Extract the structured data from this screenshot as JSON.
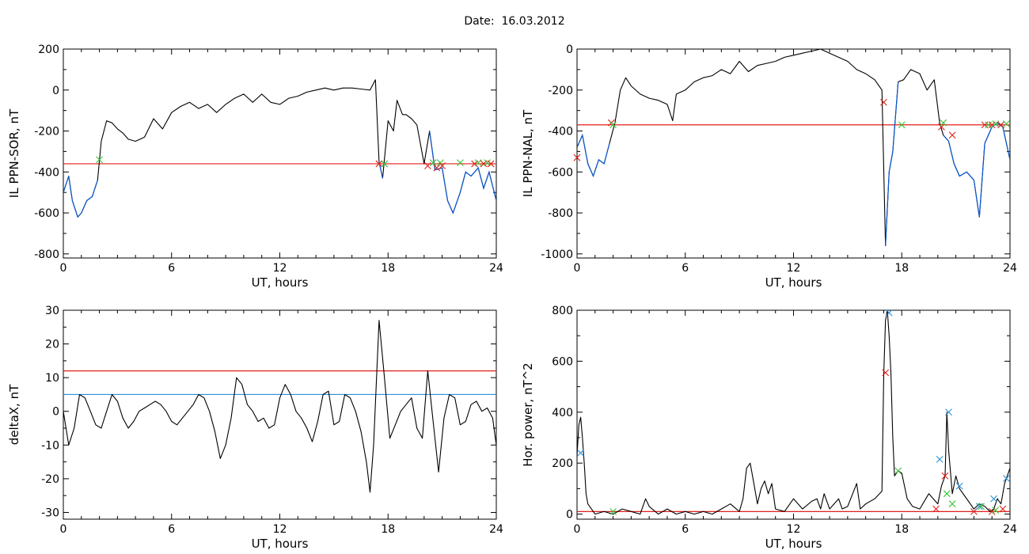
{
  "title": "Date:  16.03.2012",
  "colors": {
    "trace": "#000000",
    "blue_trace": "#0a5ad2",
    "red": "#e0201a",
    "blue": "#2b8fd6",
    "green": "#36c436"
  },
  "chart_data": [
    {
      "type": "line",
      "panel": "top-left",
      "xlabel": "UT, hours",
      "ylabel": "IL PPN-SOR, nT",
      "xlim": [
        0,
        24
      ],
      "ylim": [
        -820,
        200
      ],
      "xticks": [
        0,
        6,
        12,
        18,
        24
      ],
      "yticks": [
        -800,
        -600,
        -400,
        -200,
        0,
        200
      ],
      "grid": false,
      "threshold_lines": [
        {
          "color": "red",
          "y": -360
        }
      ],
      "series": [
        {
          "color": "black",
          "x": [
            0,
            0.3,
            0.5,
            0.8,
            1,
            1.3,
            1.6,
            1.9,
            2.1,
            2.4,
            2.7,
            3,
            3.3,
            3.6,
            4,
            4.5,
            5,
            5.5,
            6,
            6.5,
            7,
            7.5,
            8,
            8.5,
            9,
            9.5,
            10,
            10.5,
            11,
            11.5,
            12,
            12.5,
            13,
            13.5,
            14,
            14.5,
            15,
            15.5,
            16,
            16.5,
            17,
            17.3,
            17.5,
            17.7,
            18,
            18.3,
            18.5,
            18.8,
            19,
            19.3,
            19.6,
            20,
            20.3,
            20.6,
            21,
            21.3,
            21.6,
            22,
            22.3,
            22.6,
            23,
            23.3,
            23.6,
            24
          ],
          "y": [
            -500,
            -420,
            -540,
            -620,
            -600,
            -540,
            -520,
            -440,
            -250,
            -150,
            -160,
            -190,
            -210,
            -240,
            -250,
            -230,
            -140,
            -190,
            -110,
            -80,
            -60,
            -90,
            -70,
            -110,
            -70,
            -40,
            -20,
            -60,
            -20,
            -60,
            -70,
            -40,
            -30,
            -10,
            0,
            10,
            0,
            10,
            10,
            5,
            0,
            50,
            -350,
            -430,
            -150,
            -200,
            -50,
            -120,
            -120,
            -140,
            -170,
            -360,
            -200,
            -390,
            -380,
            -540,
            -600,
            -500,
            -400,
            -420,
            -380,
            -480,
            -400,
            -540
          ]
        }
      ],
      "blue_segments": [
        [
          0,
          2.0
        ],
        [
          17.4,
          17.8
        ],
        [
          20.1,
          24
        ]
      ],
      "markers": [
        {
          "x": 2.0,
          "y": -340,
          "color": "green"
        },
        {
          "x": 17.5,
          "y": -360,
          "color": "red"
        },
        {
          "x": 17.8,
          "y": -360,
          "color": "green"
        },
        {
          "x": 20.2,
          "y": -370,
          "color": "red"
        },
        {
          "x": 20.5,
          "y": -355,
          "color": "green"
        },
        {
          "x": 20.7,
          "y": -380,
          "color": "red"
        },
        {
          "x": 20.9,
          "y": -355,
          "color": "green"
        },
        {
          "x": 21.0,
          "y": -370,
          "color": "red"
        },
        {
          "x": 22.0,
          "y": -355,
          "color": "green"
        },
        {
          "x": 22.8,
          "y": -360,
          "color": "red"
        },
        {
          "x": 23.0,
          "y": -355,
          "color": "green"
        },
        {
          "x": 23.3,
          "y": -360,
          "color": "red"
        },
        {
          "x": 23.5,
          "y": -355,
          "color": "green"
        },
        {
          "x": 23.7,
          "y": -360,
          "color": "red"
        }
      ]
    },
    {
      "type": "line",
      "panel": "top-right",
      "xlabel": "UT, hours",
      "ylabel": "IL PPN-NAL, nT",
      "xlim": [
        0,
        24
      ],
      "ylim": [
        -1020,
        0
      ],
      "xticks": [
        0,
        6,
        12,
        18,
        24
      ],
      "yticks": [
        -1000,
        -800,
        -600,
        -400,
        -200,
        0
      ],
      "grid": false,
      "threshold_lines": [
        {
          "color": "red",
          "y": -370
        }
      ],
      "series": [
        {
          "color": "black",
          "x": [
            0,
            0.3,
            0.6,
            0.9,
            1.2,
            1.5,
            1.8,
            2.1,
            2.4,
            2.7,
            3,
            3.5,
            4,
            4.5,
            5,
            5.3,
            5.5,
            6,
            6.5,
            7,
            7.5,
            8,
            8.5,
            9,
            9.5,
            10,
            10.5,
            11,
            11.5,
            12,
            12.5,
            13,
            13.5,
            14,
            14.5,
            15,
            15.5,
            16,
            16.5,
            16.9,
            17.1,
            17.3,
            17.5,
            17.8,
            18.1,
            18.5,
            19,
            19.4,
            19.8,
            20.1,
            20.3,
            20.6,
            20.9,
            21.2,
            21.6,
            22,
            22.3,
            22.6,
            23,
            23.3,
            23.6,
            24
          ],
          "y": [
            -480,
            -420,
            -560,
            -620,
            -540,
            -560,
            -460,
            -360,
            -200,
            -140,
            -180,
            -220,
            -240,
            -250,
            -270,
            -350,
            -220,
            -200,
            -160,
            -140,
            -130,
            -100,
            -120,
            -60,
            -110,
            -80,
            -70,
            -60,
            -40,
            -30,
            -20,
            -10,
            0,
            -20,
            -40,
            -60,
            -100,
            -120,
            -150,
            -200,
            -960,
            -600,
            -500,
            -160,
            -150,
            -100,
            -120,
            -200,
            -150,
            -360,
            -420,
            -450,
            -560,
            -620,
            -600,
            -640,
            -820,
            -460,
            -380,
            -360,
            -380,
            -540
          ]
        }
      ],
      "blue_segments": [
        [
          0,
          2.0
        ],
        [
          17.0,
          17.8
        ],
        [
          20.2,
          24
        ]
      ],
      "markers": [
        {
          "x": 0.0,
          "y": -530,
          "color": "red"
        },
        {
          "x": 1.9,
          "y": -360,
          "color": "red"
        },
        {
          "x": 2.0,
          "y": -370,
          "color": "green"
        },
        {
          "x": 17.0,
          "y": -260,
          "color": "red"
        },
        {
          "x": 18.0,
          "y": -370,
          "color": "green"
        },
        {
          "x": 20.2,
          "y": -380,
          "color": "red"
        },
        {
          "x": 20.3,
          "y": -360,
          "color": "green"
        },
        {
          "x": 20.8,
          "y": -420,
          "color": "red"
        },
        {
          "x": 22.6,
          "y": -370,
          "color": "red"
        },
        {
          "x": 22.8,
          "y": -370,
          "color": "green"
        },
        {
          "x": 23.0,
          "y": -370,
          "color": "red"
        },
        {
          "x": 23.2,
          "y": -365,
          "color": "green"
        },
        {
          "x": 23.5,
          "y": -370,
          "color": "red"
        },
        {
          "x": 23.8,
          "y": -365,
          "color": "green"
        }
      ]
    },
    {
      "type": "line",
      "panel": "bottom-left",
      "xlabel": "UT, hours",
      "ylabel": "deltaX, nT",
      "xlim": [
        0,
        24
      ],
      "ylim": [
        -32,
        30
      ],
      "xticks": [
        0,
        6,
        12,
        18,
        24
      ],
      "yticks": [
        -30,
        -20,
        -10,
        0,
        10,
        20,
        30
      ],
      "grid": false,
      "threshold_lines": [
        {
          "color": "red",
          "y": 12
        },
        {
          "color": "blue",
          "y": 5
        }
      ],
      "series": [
        {
          "color": "black",
          "x": [
            0,
            0.3,
            0.6,
            0.9,
            1.2,
            1.5,
            1.8,
            2.1,
            2.4,
            2.7,
            3,
            3.3,
            3.6,
            3.9,
            4.2,
            4.5,
            4.8,
            5.1,
            5.4,
            5.7,
            6,
            6.3,
            6.6,
            6.9,
            7.2,
            7.5,
            7.8,
            8.1,
            8.4,
            8.7,
            9,
            9.3,
            9.6,
            9.9,
            10.2,
            10.5,
            10.8,
            11.1,
            11.4,
            11.7,
            12,
            12.3,
            12.6,
            12.9,
            13.2,
            13.5,
            13.8,
            14.1,
            14.4,
            14.7,
            15,
            15.3,
            15.6,
            15.9,
            16.2,
            16.5,
            16.8,
            17,
            17.2,
            17.5,
            17.8,
            18.1,
            18.4,
            18.7,
            19,
            19.3,
            19.6,
            19.9,
            20.2,
            20.5,
            20.8,
            21.1,
            21.4,
            21.7,
            22,
            22.3,
            22.6,
            22.9,
            23.2,
            23.5,
            23.8,
            24
          ],
          "y": [
            0,
            -10,
            -5,
            5,
            4,
            0,
            -4,
            -5,
            0,
            5,
            3,
            -2,
            -5,
            -3,
            0,
            1,
            2,
            3,
            2,
            0,
            -3,
            -4,
            -2,
            0,
            2,
            5,
            4,
            0,
            -6,
            -14,
            -10,
            -2,
            10,
            8,
            2,
            0,
            -3,
            -2,
            -5,
            -4,
            4,
            8,
            5,
            0,
            -2,
            -5,
            -9,
            -3,
            5,
            6,
            -4,
            -3,
            5,
            4,
            0,
            -6,
            -15,
            -24,
            -10,
            27,
            10,
            -8,
            -4,
            0,
            2,
            4,
            -5,
            -8,
            12,
            -3,
            -18,
            -2,
            5,
            4,
            -4,
            -3,
            2,
            3,
            0,
            1,
            -2,
            -10
          ]
        }
      ]
    },
    {
      "type": "line",
      "panel": "bottom-right",
      "xlabel": "UT, hours",
      "ylabel": "Hor. power, nT^2",
      "xlim": [
        0,
        24
      ],
      "ylim": [
        -20,
        800
      ],
      "xticks": [
        0,
        6,
        12,
        18,
        24
      ],
      "yticks": [
        0,
        200,
        400,
        600,
        800
      ],
      "grid": false,
      "threshold_lines": [
        {
          "color": "red",
          "y": 10
        }
      ],
      "series": [
        {
          "color": "black",
          "x": [
            0,
            0.1,
            0.2,
            0.3,
            0.4,
            0.5,
            0.6,
            0.8,
            1,
            1.5,
            2,
            2.5,
            3,
            3.5,
            3.8,
            4,
            4.5,
            5,
            5.5,
            6,
            6.5,
            7,
            7.5,
            8,
            8.5,
            9,
            9.2,
            9.4,
            9.6,
            9.8,
            10,
            10.2,
            10.4,
            10.6,
            10.8,
            11,
            11.5,
            12,
            12.5,
            13,
            13.3,
            13.5,
            13.7,
            14,
            14.5,
            14.7,
            15,
            15.5,
            15.7,
            16,
            16.5,
            16.9,
            17.0,
            17.1,
            17.2,
            17.3,
            17.4,
            17.5,
            17.6,
            17.8,
            18,
            18.3,
            18.6,
            19,
            19.5,
            20,
            20.2,
            20.4,
            20.5,
            20.6,
            20.8,
            21,
            21.2,
            21.5,
            22,
            22.3,
            22.6,
            22.9,
            23.1,
            23.3,
            23.5,
            23.7,
            24
          ],
          "y": [
            230,
            350,
            380,
            300,
            200,
            80,
            40,
            20,
            0,
            10,
            0,
            20,
            10,
            0,
            60,
            30,
            0,
            20,
            0,
            10,
            0,
            10,
            0,
            20,
            40,
            10,
            60,
            180,
            200,
            120,
            40,
            100,
            130,
            80,
            120,
            20,
            10,
            60,
            20,
            50,
            60,
            20,
            80,
            20,
            60,
            20,
            30,
            120,
            20,
            40,
            60,
            90,
            550,
            760,
            800,
            700,
            550,
            300,
            150,
            170,
            160,
            60,
            30,
            20,
            80,
            40,
            110,
            150,
            400,
            250,
            80,
            150,
            100,
            70,
            20,
            40,
            30,
            10,
            20,
            60,
            40,
            120,
            180
          ]
        }
      ],
      "markers": [
        {
          "x": 0.2,
          "y": 240,
          "color": "blue"
        },
        {
          "x": 2.0,
          "y": 10,
          "color": "green"
        },
        {
          "x": 17.1,
          "y": 555,
          "color": "red"
        },
        {
          "x": 17.3,
          "y": 790,
          "color": "blue"
        },
        {
          "x": 17.8,
          "y": 170,
          "color": "green"
        },
        {
          "x": 19.9,
          "y": 20,
          "color": "red"
        },
        {
          "x": 20.1,
          "y": 215,
          "color": "blue"
        },
        {
          "x": 20.4,
          "y": 150,
          "color": "red"
        },
        {
          "x": 20.5,
          "y": 80,
          "color": "green"
        },
        {
          "x": 20.6,
          "y": 400,
          "color": "blue"
        },
        {
          "x": 20.8,
          "y": 40,
          "color": "green"
        },
        {
          "x": 21.2,
          "y": 110,
          "color": "blue"
        },
        {
          "x": 22.0,
          "y": 10,
          "color": "red"
        },
        {
          "x": 22.3,
          "y": 30,
          "color": "blue"
        },
        {
          "x": 22.4,
          "y": 30,
          "color": "green"
        },
        {
          "x": 23.0,
          "y": 10,
          "color": "red"
        },
        {
          "x": 23.1,
          "y": 60,
          "color": "blue"
        },
        {
          "x": 23.2,
          "y": 15,
          "color": "green"
        },
        {
          "x": 23.6,
          "y": 20,
          "color": "red"
        },
        {
          "x": 23.8,
          "y": 140,
          "color": "blue"
        }
      ]
    }
  ]
}
